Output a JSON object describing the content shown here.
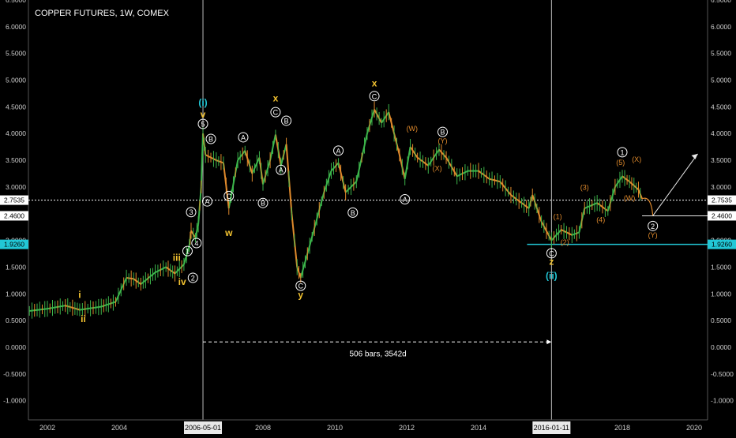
{
  "title": "COPPER FUTURES, 1W, COMEX",
  "chart_data": {
    "type": "line",
    "title": "COPPER FUTURES, 1W, COMEX",
    "xlabel": "",
    "ylabel": "",
    "xlim": [
      2001.5,
      2020.5
    ],
    "ylim": [
      -1.2,
      6.5
    ],
    "y_ticks": [
      -1.0,
      -0.5,
      0.0,
      0.5,
      1.0,
      1.5,
      2.0,
      2.5,
      3.0,
      3.5,
      4.0,
      4.5,
      5.0,
      5.5,
      6.0,
      6.5
    ],
    "y_tick_labels": [
      "-1.0000",
      "-0.5000",
      "0.0000",
      "0.5000",
      "1.0000",
      "1.5000",
      "2.0000",
      "2.5000",
      "3.0000",
      "3.5000",
      "4.0000",
      "4.5000",
      "5.0000",
      "5.5000",
      "6.0000",
      "6.5000"
    ],
    "x_ticks": [
      2002,
      2004,
      2008,
      2010,
      2012,
      2014,
      2018,
      2020
    ],
    "x_tick_labels": [
      "2002",
      "2004",
      "2008",
      "2010",
      "2012",
      "2014",
      "2018",
      "2020"
    ],
    "x_highlight_labels": [
      {
        "x": 2006.33,
        "label": "2006-05-01"
      },
      {
        "x": 2016.03,
        "label": "2016-01-11"
      }
    ],
    "grid": false,
    "series": [
      {
        "values": [
          [
            2001.5,
            0.68
          ],
          [
            2002.0,
            0.72
          ],
          [
            2002.5,
            0.78
          ],
          [
            2002.9,
            0.7
          ],
          [
            2003.5,
            0.76
          ],
          [
            2003.9,
            0.85
          ],
          [
            2004.2,
            1.3
          ],
          [
            2004.4,
            1.28
          ],
          [
            2004.6,
            1.18
          ],
          [
            2005.0,
            1.4
          ],
          [
            2005.3,
            1.5
          ],
          [
            2005.55,
            1.38
          ],
          [
            2005.8,
            1.55
          ],
          [
            2005.95,
            1.9
          ],
          [
            2006.0,
            2.18
          ],
          [
            2006.12,
            2.05
          ],
          [
            2006.2,
            2.3
          ],
          [
            2006.28,
            3.0
          ],
          [
            2006.33,
            4.0
          ],
          [
            2006.4,
            3.6
          ],
          [
            2006.55,
            3.55
          ],
          [
            2006.7,
            3.5
          ],
          [
            2006.9,
            3.45
          ],
          [
            2007.05,
            2.6
          ],
          [
            2007.3,
            3.5
          ],
          [
            2007.5,
            3.68
          ],
          [
            2007.7,
            3.25
          ],
          [
            2007.9,
            3.55
          ],
          [
            2008.0,
            3.05
          ],
          [
            2008.2,
            3.5
          ],
          [
            2008.35,
            3.98
          ],
          [
            2008.5,
            3.4
          ],
          [
            2008.65,
            3.8
          ],
          [
            2008.8,
            2.5
          ],
          [
            2008.95,
            1.5
          ],
          [
            2009.05,
            1.3
          ],
          [
            2009.3,
            1.9
          ],
          [
            2009.5,
            2.4
          ],
          [
            2009.7,
            2.9
          ],
          [
            2009.9,
            3.3
          ],
          [
            2010.1,
            3.45
          ],
          [
            2010.3,
            2.9
          ],
          [
            2010.6,
            3.1
          ],
          [
            2010.9,
            4.0
          ],
          [
            2011.1,
            4.45
          ],
          [
            2011.3,
            4.2
          ],
          [
            2011.5,
            4.4
          ],
          [
            2011.8,
            3.6
          ],
          [
            2011.95,
            3.15
          ],
          [
            2012.1,
            3.75
          ],
          [
            2012.3,
            3.55
          ],
          [
            2012.6,
            3.4
          ],
          [
            2012.9,
            3.7
          ],
          [
            2013.1,
            3.55
          ],
          [
            2013.4,
            3.2
          ],
          [
            2013.7,
            3.3
          ],
          [
            2014.0,
            3.3
          ],
          [
            2014.3,
            3.15
          ],
          [
            2014.6,
            3.1
          ],
          [
            2014.9,
            2.85
          ],
          [
            2015.2,
            2.7
          ],
          [
            2015.4,
            2.6
          ],
          [
            2015.5,
            2.85
          ],
          [
            2015.75,
            2.35
          ],
          [
            2016.03,
            2.0
          ],
          [
            2016.3,
            2.2
          ],
          [
            2016.6,
            2.1
          ],
          [
            2016.8,
            2.15
          ],
          [
            2016.95,
            2.6
          ],
          [
            2017.3,
            2.7
          ],
          [
            2017.6,
            2.55
          ],
          [
            2017.8,
            3.0
          ],
          [
            2018.0,
            3.2
          ],
          [
            2018.2,
            3.1
          ],
          [
            2018.45,
            2.95
          ],
          [
            2018.55,
            2.78
          ]
        ]
      }
    ],
    "price_lines": [
      {
        "value": 2.7535,
        "label": "2.7535"
      },
      {
        "value": 2.46,
        "label": "2.4600"
      },
      {
        "value": 1.926,
        "label": "1.9260"
      }
    ],
    "wave_labels": [
      {
        "text": "i",
        "x": 2002.9,
        "y": 0.92,
        "style": "roman-yellow"
      },
      {
        "text": "ii",
        "x": 2003.0,
        "y": 0.47,
        "style": "roman-yellow"
      },
      {
        "text": "iii",
        "x": 2005.6,
        "y": 1.62,
        "style": "roman-yellow"
      },
      {
        "text": "iv",
        "x": 2005.75,
        "y": 1.17,
        "style": "roman-yellow"
      },
      {
        "text": "v",
        "x": 2006.33,
        "y": 4.3,
        "style": "roman-yellow"
      },
      {
        "text": "(i)",
        "x": 2006.33,
        "y": 4.52,
        "style": "cyan"
      },
      {
        "text": "w",
        "x": 2007.05,
        "y": 2.08,
        "style": "roman-yellow"
      },
      {
        "text": "x",
        "x": 2008.35,
        "y": 4.6,
        "style": "roman-yellow"
      },
      {
        "text": "y",
        "x": 2009.05,
        "y": 0.92,
        "style": "roman-yellow"
      },
      {
        "text": "x",
        "x": 2011.1,
        "y": 4.88,
        "style": "roman-yellow"
      },
      {
        "text": "z",
        "x": 2016.03,
        "y": 1.54,
        "style": "roman-yellow"
      },
      {
        "text": "(ii)",
        "x": 2016.03,
        "y": 1.28,
        "style": "cyan"
      },
      {
        "text": "1",
        "x": 2005.9,
        "y": 1.8,
        "style": "circle-white"
      },
      {
        "text": "2",
        "x": 2006.05,
        "y": 1.3,
        "style": "circle-white"
      },
      {
        "text": "3",
        "x": 2006.0,
        "y": 2.53,
        "style": "circle-white"
      },
      {
        "text": "4",
        "x": 2006.15,
        "y": 1.95,
        "style": "circle-white"
      },
      {
        "text": "5",
        "x": 2006.33,
        "y": 4.18,
        "style": "circle-white"
      },
      {
        "text": "B",
        "x": 2006.55,
        "y": 3.9,
        "style": "circle-white"
      },
      {
        "text": "A",
        "x": 2006.45,
        "y": 2.73,
        "style": "circle-white"
      },
      {
        "text": "C",
        "x": 2007.05,
        "y": 2.83,
        "style": "circle-white"
      },
      {
        "text": "A",
        "x": 2007.45,
        "y": 3.93,
        "style": "circle-white"
      },
      {
        "text": "B",
        "x": 2008.0,
        "y": 2.7,
        "style": "circle-white"
      },
      {
        "text": "C",
        "x": 2008.35,
        "y": 4.4,
        "style": "circle-white"
      },
      {
        "text": "B",
        "x": 2008.65,
        "y": 4.24,
        "style": "circle-white"
      },
      {
        "text": "A",
        "x": 2008.5,
        "y": 3.32,
        "style": "circle-white"
      },
      {
        "text": "C",
        "x": 2009.05,
        "y": 1.15,
        "style": "circle-white"
      },
      {
        "text": "A",
        "x": 2010.1,
        "y": 3.68,
        "style": "circle-white"
      },
      {
        "text": "B",
        "x": 2010.5,
        "y": 2.52,
        "style": "circle-white"
      },
      {
        "text": "C",
        "x": 2011.1,
        "y": 4.7,
        "style": "circle-white"
      },
      {
        "text": "A",
        "x": 2011.95,
        "y": 2.77,
        "style": "circle-white"
      },
      {
        "text": "B",
        "x": 2013.0,
        "y": 4.03,
        "style": "circle-white"
      },
      {
        "text": "C",
        "x": 2016.03,
        "y": 1.76,
        "style": "circle-white"
      },
      {
        "text": "1",
        "x": 2018.0,
        "y": 3.65,
        "style": "circle-white"
      },
      {
        "text": "2",
        "x": 2018.85,
        "y": 2.27,
        "style": "circle-white"
      },
      {
        "text": "(W)",
        "x": 2012.15,
        "y": 4.05,
        "style": "orange"
      },
      {
        "text": "(Y)",
        "x": 2013.0,
        "y": 3.82,
        "style": "orange"
      },
      {
        "text": "(X)",
        "x": 2012.85,
        "y": 3.3,
        "style": "orange"
      },
      {
        "text": "(1)",
        "x": 2016.2,
        "y": 2.4,
        "style": "orange"
      },
      {
        "text": "(2)",
        "x": 2016.4,
        "y": 1.92,
        "style": "orange"
      },
      {
        "text": "(3)",
        "x": 2016.95,
        "y": 2.95,
        "style": "orange"
      },
      {
        "text": "(4)",
        "x": 2017.4,
        "y": 2.34,
        "style": "orange"
      },
      {
        "text": "(5)",
        "x": 2017.95,
        "y": 3.41,
        "style": "orange"
      },
      {
        "text": "(X)",
        "x": 2018.4,
        "y": 3.47,
        "style": "orange"
      },
      {
        "text": "(W)",
        "x": 2018.2,
        "y": 2.75,
        "style": "orange"
      },
      {
        "text": "(Y)",
        "x": 2018.85,
        "y": 2.05,
        "style": "orange"
      }
    ],
    "annotations": [
      {
        "text": "506 bars, 3542d",
        "x": 2011.2,
        "y": -0.17
      }
    ],
    "measure": {
      "x_from": 2006.33,
      "x_to": 2016.03,
      "y": 0.1
    }
  }
}
